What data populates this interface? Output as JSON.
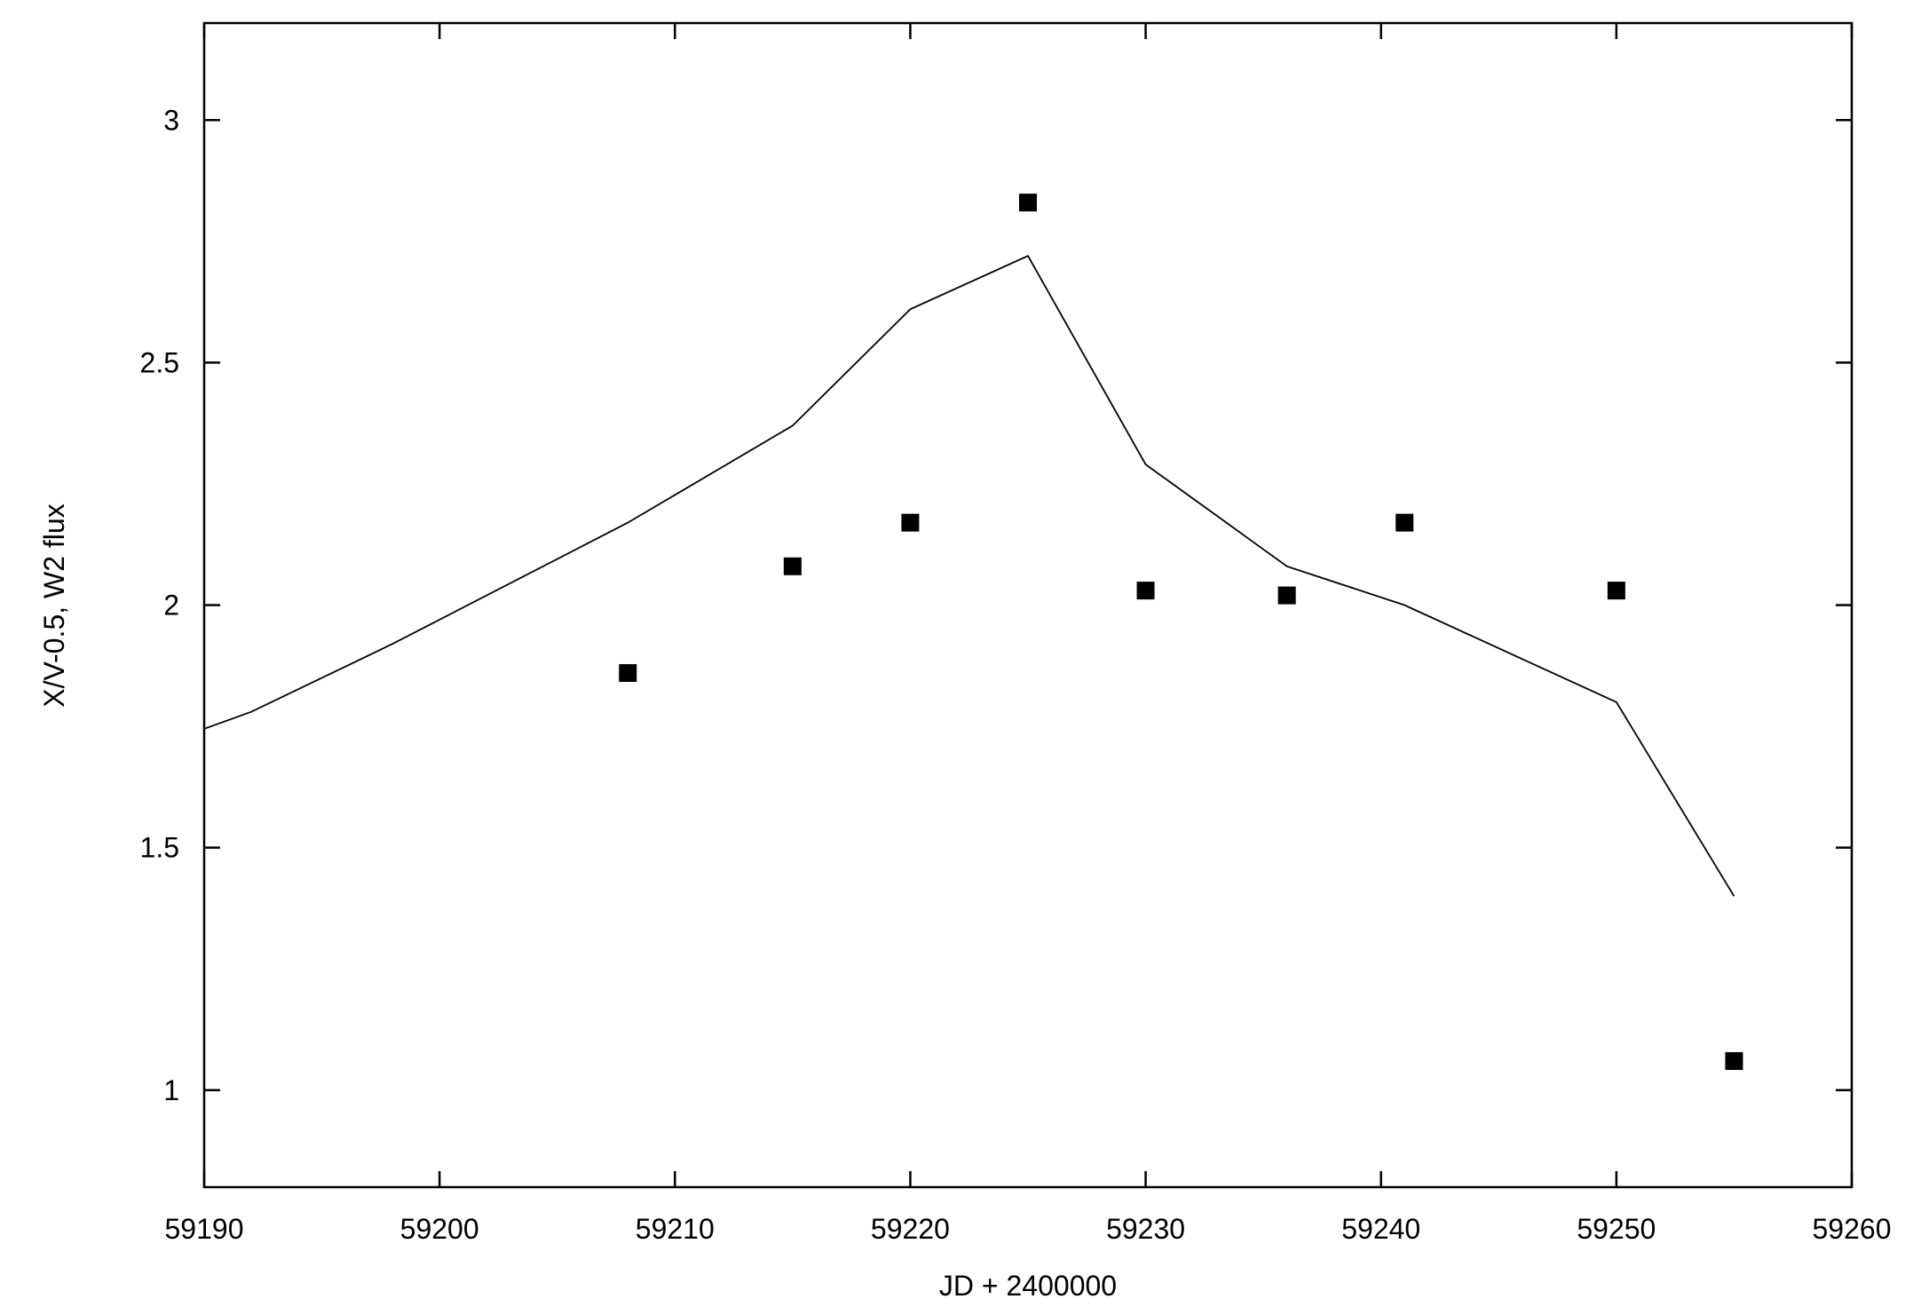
{
  "chart_data": {
    "type": "scatter",
    "title": "",
    "xlabel": "JD + 2400000",
    "ylabel": "X/V-0.5, W2 flux",
    "xlim": [
      59190,
      59260
    ],
    "ylim": [
      0.8,
      3.2
    ],
    "x_ticks": [
      59190,
      59200,
      59210,
      59220,
      59230,
      59240,
      59250,
      59260
    ],
    "y_ticks": [
      1,
      1.5,
      2,
      2.5,
      3
    ],
    "y_tick_labels": [
      "1",
      "1.5",
      "2",
      "2.5",
      "3"
    ],
    "grid": false,
    "legend": "none",
    "series": [
      {
        "kind": "points",
        "marker": "filled-square",
        "color": "#000000",
        "x": [
          59208,
          59215,
          59220,
          59225,
          59230,
          59236,
          59241,
          59250,
          59255
        ],
        "y": [
          1.86,
          2.08,
          2.17,
          2.83,
          2.03,
          2.02,
          2.17,
          2.03,
          1.06
        ]
      },
      {
        "kind": "line",
        "color": "#000000",
        "x": [
          59190,
          59192,
          59198,
          59208,
          59215,
          59220,
          59225,
          59230,
          59236,
          59241,
          59250,
          59255
        ],
        "y": [
          1.745,
          1.78,
          1.92,
          2.17,
          2.37,
          2.61,
          2.72,
          2.29,
          2.08,
          2.0,
          1.8,
          1.4
        ]
      }
    ]
  }
}
